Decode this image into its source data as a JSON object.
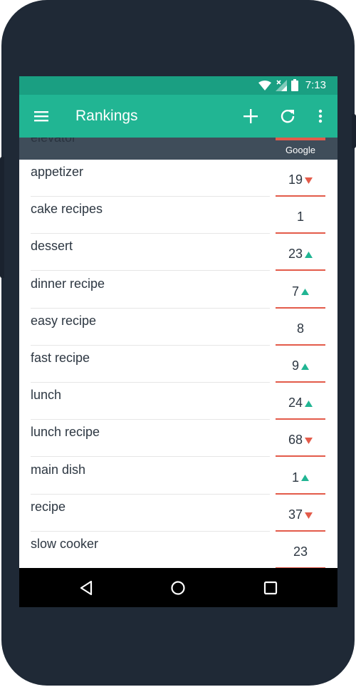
{
  "status": {
    "time": "7:13"
  },
  "appbar": {
    "title": "Rankings",
    "icons": {
      "menu": "menu-icon",
      "add": "add-icon",
      "refresh": "refresh-icon",
      "more": "more-vert-icon"
    }
  },
  "subheader": {
    "previous_keyword": "elevator",
    "engine_label": "Google"
  },
  "rows": [
    {
      "keyword": "appetizer",
      "rank": "19",
      "trend": "down"
    },
    {
      "keyword": "cake recipes",
      "rank": "1",
      "trend": "none"
    },
    {
      "keyword": "dessert",
      "rank": "23",
      "trend": "up"
    },
    {
      "keyword": "dinner recipe",
      "rank": "7",
      "trend": "up"
    },
    {
      "keyword": "easy recipe",
      "rank": "8",
      "trend": "none"
    },
    {
      "keyword": "fast recipe",
      "rank": "9",
      "trend": "up"
    },
    {
      "keyword": "lunch",
      "rank": "24",
      "trend": "up"
    },
    {
      "keyword": "lunch recipe",
      "rank": "68",
      "trend": "down"
    },
    {
      "keyword": "main dish",
      "rank": "1",
      "trend": "up"
    },
    {
      "keyword": "recipe",
      "rank": "37",
      "trend": "down"
    },
    {
      "keyword": "slow cooker",
      "rank": "23",
      "trend": "none"
    }
  ],
  "colors": {
    "accent": "#21b593",
    "statusbar": "#1a9f82",
    "up": "#21b593",
    "down": "#e35b4a",
    "rank_underline": "#e35b4a"
  }
}
